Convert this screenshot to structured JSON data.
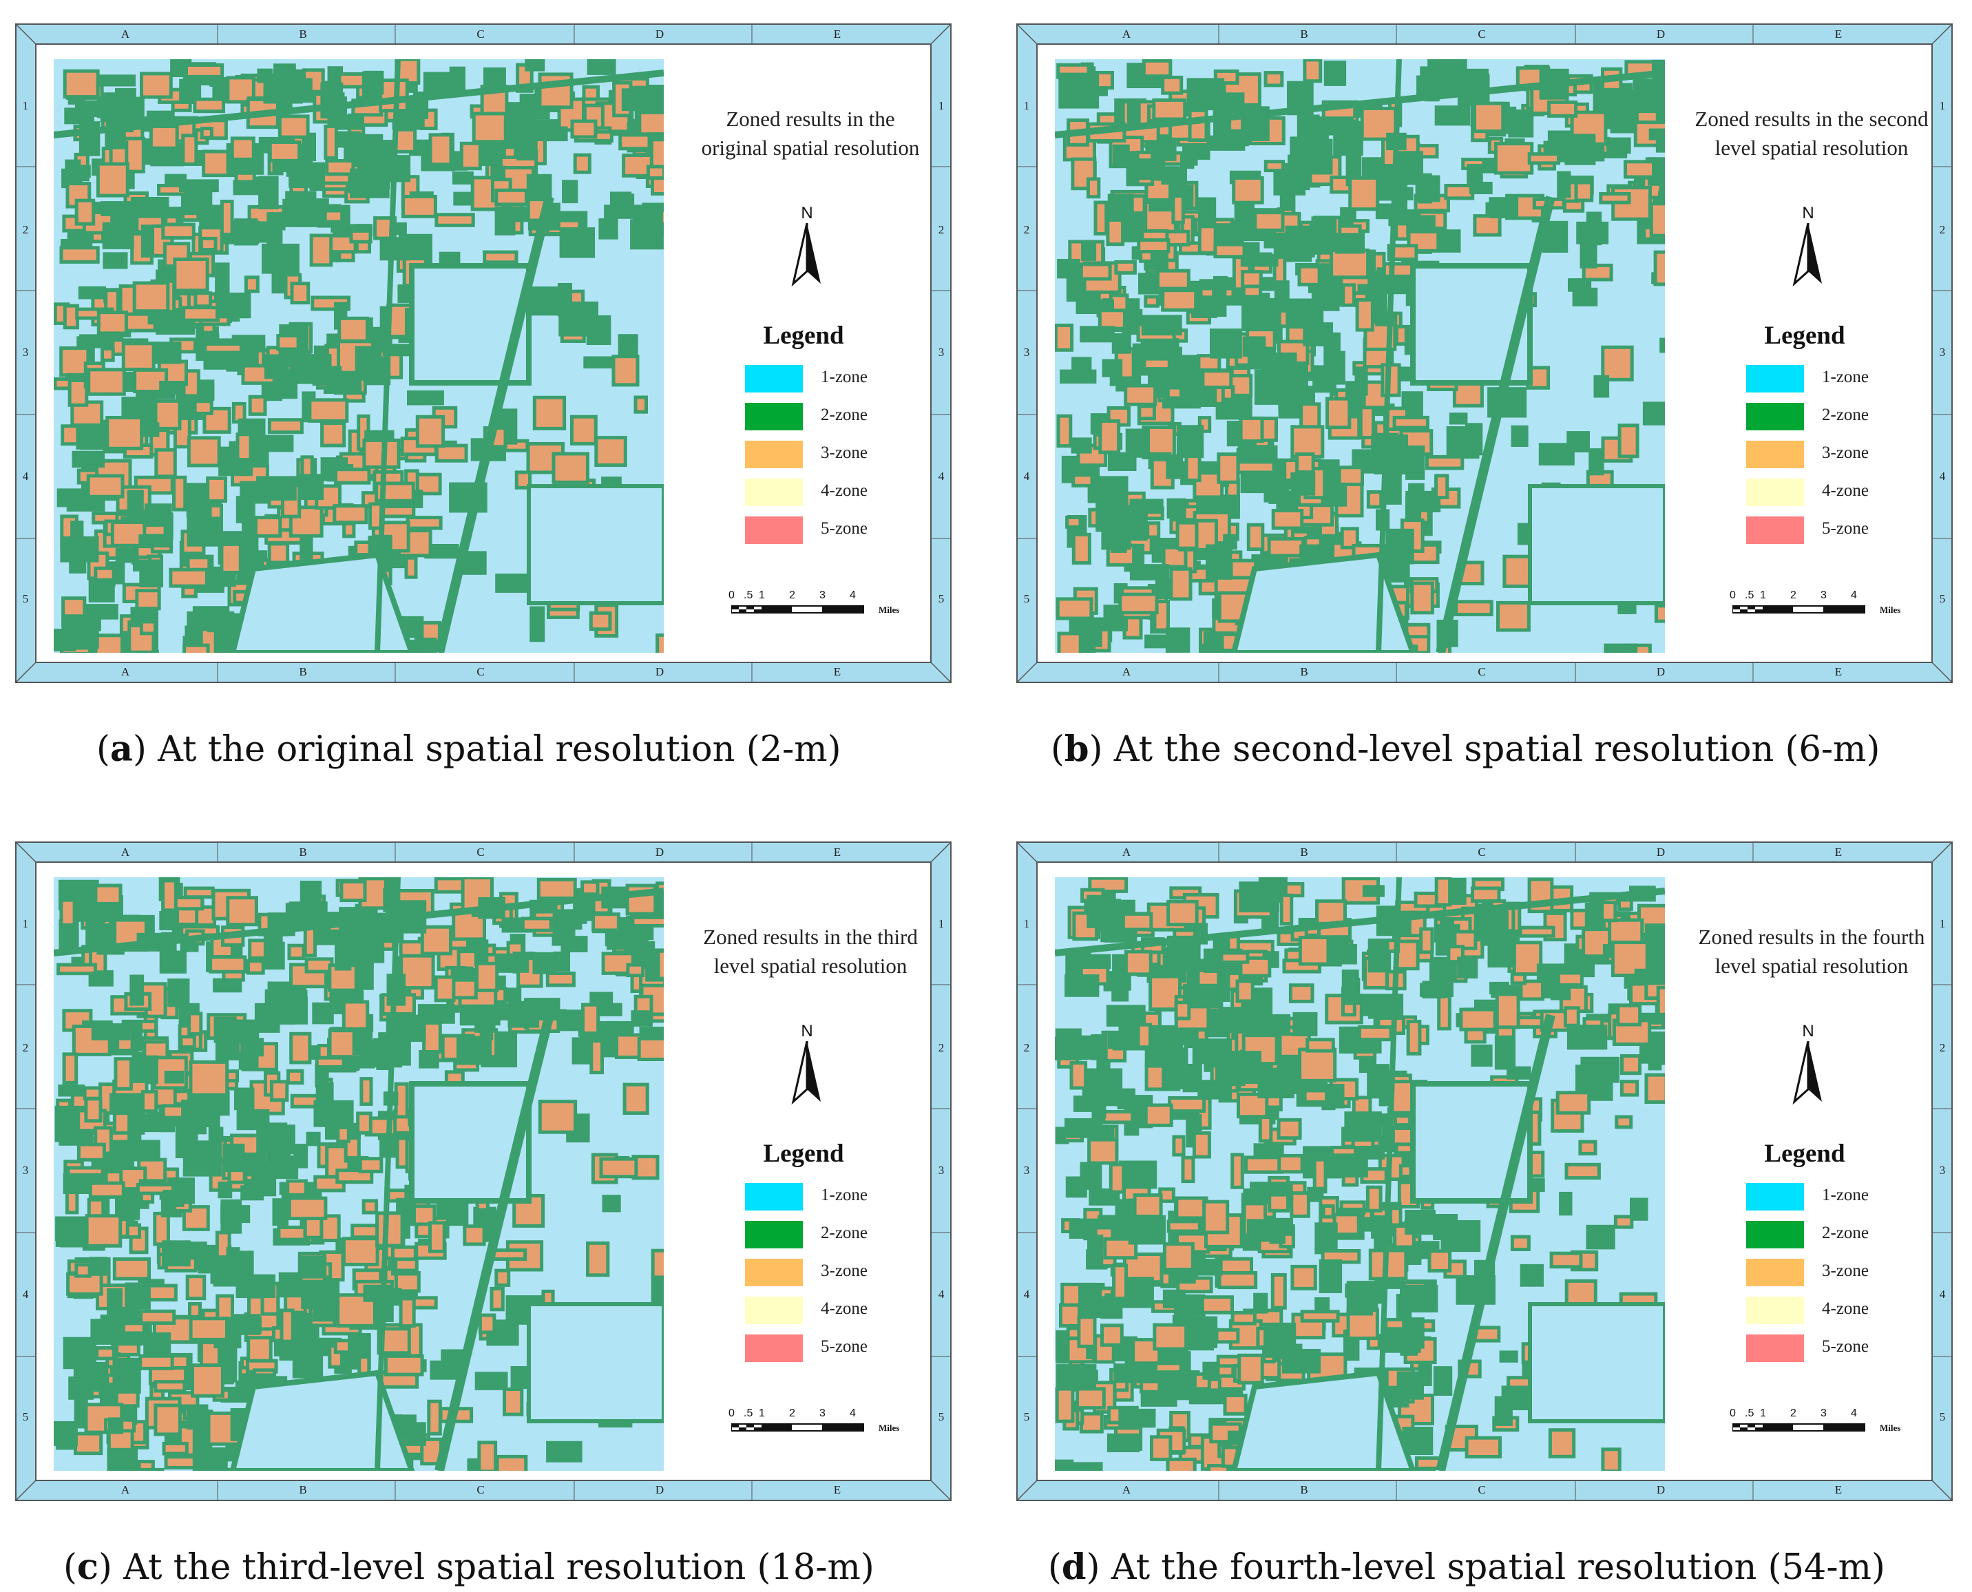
{
  "grid": {
    "columns": [
      "A",
      "B",
      "C",
      "D",
      "E"
    ],
    "rows": [
      "1",
      "2",
      "3",
      "4",
      "5"
    ]
  },
  "legend": {
    "title": "Legend",
    "items": [
      {
        "label": "1-zone",
        "color": "#00e0ff"
      },
      {
        "label": "2-zone",
        "color": "#00a833"
      },
      {
        "label": "3-zone",
        "color": "#ffbf5e"
      },
      {
        "label": "4-zone",
        "color": "#ffffc4"
      },
      {
        "label": "5-zone",
        "color": "#ff8080"
      }
    ]
  },
  "map_colors": {
    "water": "#b1e4f5",
    "zone_outline": "#3b9e6d",
    "zone_fill": "#e6a070",
    "frame": "#a7dcef"
  },
  "north": "N",
  "scale": {
    "ticks": [
      "0",
      ".5",
      "1",
      "2",
      "3",
      "4"
    ],
    "unit": "Miles"
  },
  "panels": [
    {
      "id": "a",
      "title_lines": [
        "Zoned results in the",
        "original spatial resolution"
      ],
      "caption_letter": "a",
      "caption_text": " At the original spatial resolution (2-m)"
    },
    {
      "id": "b",
      "title_lines": [
        "Zoned results in the second",
        "level spatial resolution"
      ],
      "caption_letter": "b",
      "caption_text": " At the second-level spatial resolution (6-m)"
    },
    {
      "id": "c",
      "title_lines": [
        "Zoned results in the third",
        "level spatial resolution"
      ],
      "caption_letter": "c",
      "caption_text": " At the third-level spatial resolution (18-m)"
    },
    {
      "id": "d",
      "title_lines": [
        "Zoned results in the fourth",
        "level spatial resolution"
      ],
      "caption_letter": "d",
      "caption_text": " At the fourth-level spatial resolution (54-m)"
    }
  ]
}
